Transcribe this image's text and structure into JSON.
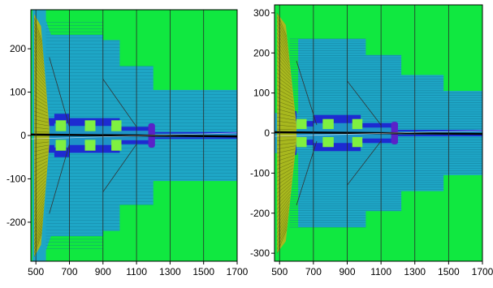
{
  "colors": {
    "background": "#10e840",
    "cyan": "#1ea6c6",
    "blue": "#1d2bd1",
    "olive": "#a8b81e",
    "light_green": "#7ff040",
    "purple": "#5a22c8",
    "beam": "#000000",
    "grid": "#2a2a2a"
  },
  "panels": [
    {
      "id": "left",
      "x_range": [
        470,
        1700
      ],
      "y_range": [
        -290,
        290
      ],
      "x_ticks": [
        {
          "value": 500,
          "label": "500"
        },
        {
          "value": 700,
          "label": "700"
        },
        {
          "value": 900,
          "label": "900"
        },
        {
          "value": 1100,
          "label": "1100"
        },
        {
          "value": 1300,
          "label": "1300"
        },
        {
          "value": 1500,
          "label": "1500"
        },
        {
          "value": 1700,
          "label": "1700"
        }
      ],
      "y_ticks": [
        {
          "value": 200,
          "label": "200"
        },
        {
          "value": 100,
          "label": "100"
        },
        {
          "value": 0,
          "label": "0"
        },
        {
          "value": -100,
          "label": "-100"
        },
        {
          "value": -200,
          "label": "-200"
        }
      ],
      "grid_x": [
        500,
        700,
        900,
        1100,
        1300,
        1500,
        1700
      ],
      "cyan_profile": [
        [
          480,
          290
        ],
        [
          560,
          290
        ],
        [
          560,
          265
        ],
        [
          590,
          232
        ],
        [
          900,
          232
        ],
        [
          900,
          220
        ],
        [
          1000,
          220
        ],
        [
          1000,
          160
        ],
        [
          1200,
          160
        ],
        [
          1200,
          105
        ],
        [
          1700,
          105
        ]
      ],
      "blue_profile": [
        [
          520,
          40
        ],
        [
          610,
          40
        ],
        [
          610,
          50
        ],
        [
          700,
          50
        ],
        [
          700,
          40
        ],
        [
          1000,
          40
        ],
        [
          1000,
          20
        ],
        [
          1200,
          20
        ],
        [
          1200,
          8
        ],
        [
          1700,
          8
        ]
      ],
      "olive_wedge": {
        "x0": 490,
        "x1": 580,
        "half_height": 280
      },
      "green_blocks": [
        [
          618,
          680
        ],
        [
          792,
          855
        ],
        [
          950,
          1010
        ]
      ],
      "purple_block": [
        1170,
        1210
      ]
    },
    {
      "id": "right",
      "x_range": [
        470,
        1700
      ],
      "y_range": [
        -320,
        320
      ],
      "x_ticks": [
        {
          "value": 500,
          "label": "500"
        },
        {
          "value": 700,
          "label": "700"
        },
        {
          "value": 900,
          "label": "900"
        },
        {
          "value": 1100,
          "label": "1100"
        },
        {
          "value": 1300,
          "label": "1300"
        },
        {
          "value": 1500,
          "label": "1500"
        },
        {
          "value": 1700,
          "label": "1700"
        }
      ],
      "y_ticks": [
        {
          "value": 300,
          "label": "300"
        },
        {
          "value": 200,
          "label": "200"
        },
        {
          "value": 100,
          "label": "100"
        },
        {
          "value": 0,
          "label": "0"
        },
        {
          "value": -100,
          "label": "-100"
        },
        {
          "value": -200,
          "label": "-200"
        },
        {
          "value": -300,
          "label": "-300"
        }
      ],
      "grid_x": [
        500,
        700,
        900,
        1100,
        1300,
        1500,
        1700
      ],
      "cyan_profile": [
        [
          470,
          50
        ],
        [
          610,
          50
        ],
        [
          610,
          235
        ],
        [
          1010,
          235
        ],
        [
          1010,
          195
        ],
        [
          1220,
          195
        ],
        [
          1220,
          145
        ],
        [
          1470,
          145
        ],
        [
          1470,
          105
        ],
        [
          1700,
          105
        ]
      ],
      "blue_profile": [
        [
          520,
          55
        ],
        [
          600,
          55
        ],
        [
          600,
          30
        ],
        [
          700,
          30
        ],
        [
          700,
          45
        ],
        [
          980,
          45
        ],
        [
          980,
          25
        ],
        [
          1200,
          25
        ],
        [
          1200,
          8
        ],
        [
          1700,
          8
        ]
      ],
      "olive_wedge": {
        "x0": 485,
        "x1": 600,
        "half_height": 300
      },
      "green_blocks": [
        [
          600,
          660
        ],
        [
          755,
          820
        ],
        [
          930,
          990
        ]
      ],
      "purple_block": [
        1160,
        1200
      ]
    }
  ]
}
